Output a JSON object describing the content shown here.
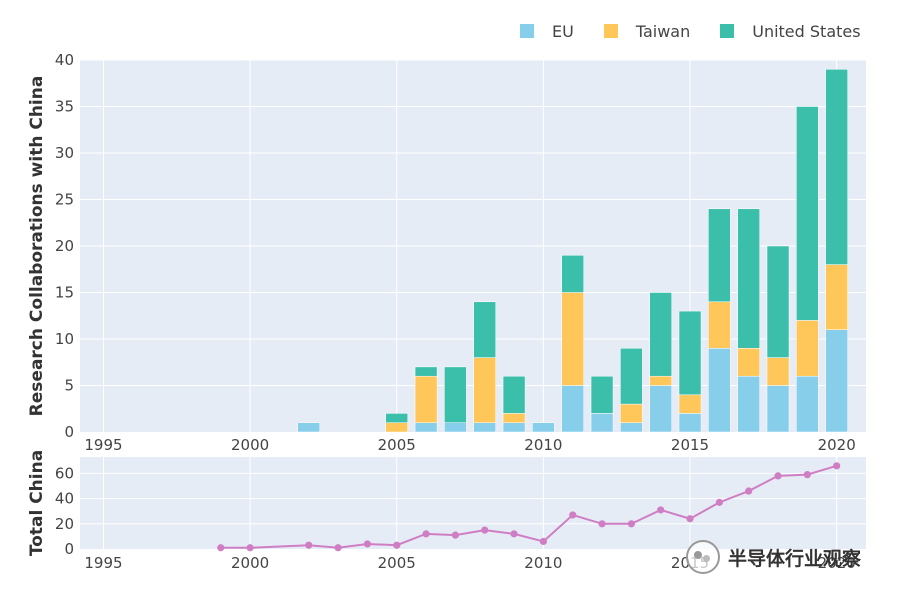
{
  "legend": {
    "items": [
      {
        "label": "EU",
        "color": "#87ceeb"
      },
      {
        "label": "Taiwan",
        "color": "#ffc75a"
      },
      {
        "label": "United States",
        "color": "#3bbeaa"
      }
    ]
  },
  "watermark": {
    "text": "半导体行业观察",
    "icon": "wechat-icon"
  },
  "chart_data": [
    {
      "type": "bar",
      "stacked": true,
      "ylabel": "Research Collaborations with China",
      "xlabel": "",
      "ylim": [
        0,
        40
      ],
      "xlim": [
        1994.2,
        2021.0
      ],
      "yticks": [
        0,
        5,
        10,
        15,
        20,
        25,
        30,
        35,
        40
      ],
      "xticks": [
        1995,
        2000,
        2005,
        2010,
        2015,
        2020
      ],
      "grid": true,
      "legend_position": "top-right",
      "x": [
        2002,
        2005,
        2006,
        2007,
        2008,
        2009,
        2010,
        2011,
        2012,
        2013,
        2014,
        2015,
        2016,
        2017,
        2018,
        2019,
        2020
      ],
      "series": [
        {
          "name": "EU",
          "color": "#87ceeb",
          "values": [
            1,
            0,
            1,
            1,
            1,
            1,
            1,
            5,
            2,
            1,
            5,
            2,
            9,
            6,
            5,
            6,
            11
          ]
        },
        {
          "name": "Taiwan",
          "color": "#ffc75a",
          "values": [
            0,
            1,
            5,
            0,
            7,
            1,
            0,
            10,
            0,
            2,
            1,
            2,
            5,
            3,
            3,
            6,
            7
          ]
        },
        {
          "name": "United States",
          "color": "#3bbeaa",
          "values": [
            0,
            1,
            1,
            6,
            6,
            4,
            0,
            4,
            4,
            6,
            9,
            9,
            10,
            15,
            12,
            23,
            21
          ]
        }
      ]
    },
    {
      "type": "line",
      "ylabel": "Total China",
      "xlabel": "",
      "ylim": [
        0,
        73
      ],
      "xlim": [
        1994.2,
        2021.0
      ],
      "yticks": [
        0,
        20,
        40,
        60
      ],
      "xticks": [
        1995,
        2000,
        2005,
        2010,
        2015,
        2020
      ],
      "grid": true,
      "color": "#d07ec4",
      "x": [
        1999,
        2000,
        2002,
        2003,
        2004,
        2005,
        2006,
        2007,
        2008,
        2009,
        2010,
        2011,
        2012,
        2013,
        2014,
        2015,
        2016,
        2017,
        2018,
        2019,
        2020
      ],
      "y": [
        1,
        1,
        3,
        1,
        4,
        3,
        12,
        11,
        15,
        12,
        6,
        27,
        20,
        20,
        31,
        24,
        37,
        46,
        58,
        59,
        66
      ]
    }
  ]
}
